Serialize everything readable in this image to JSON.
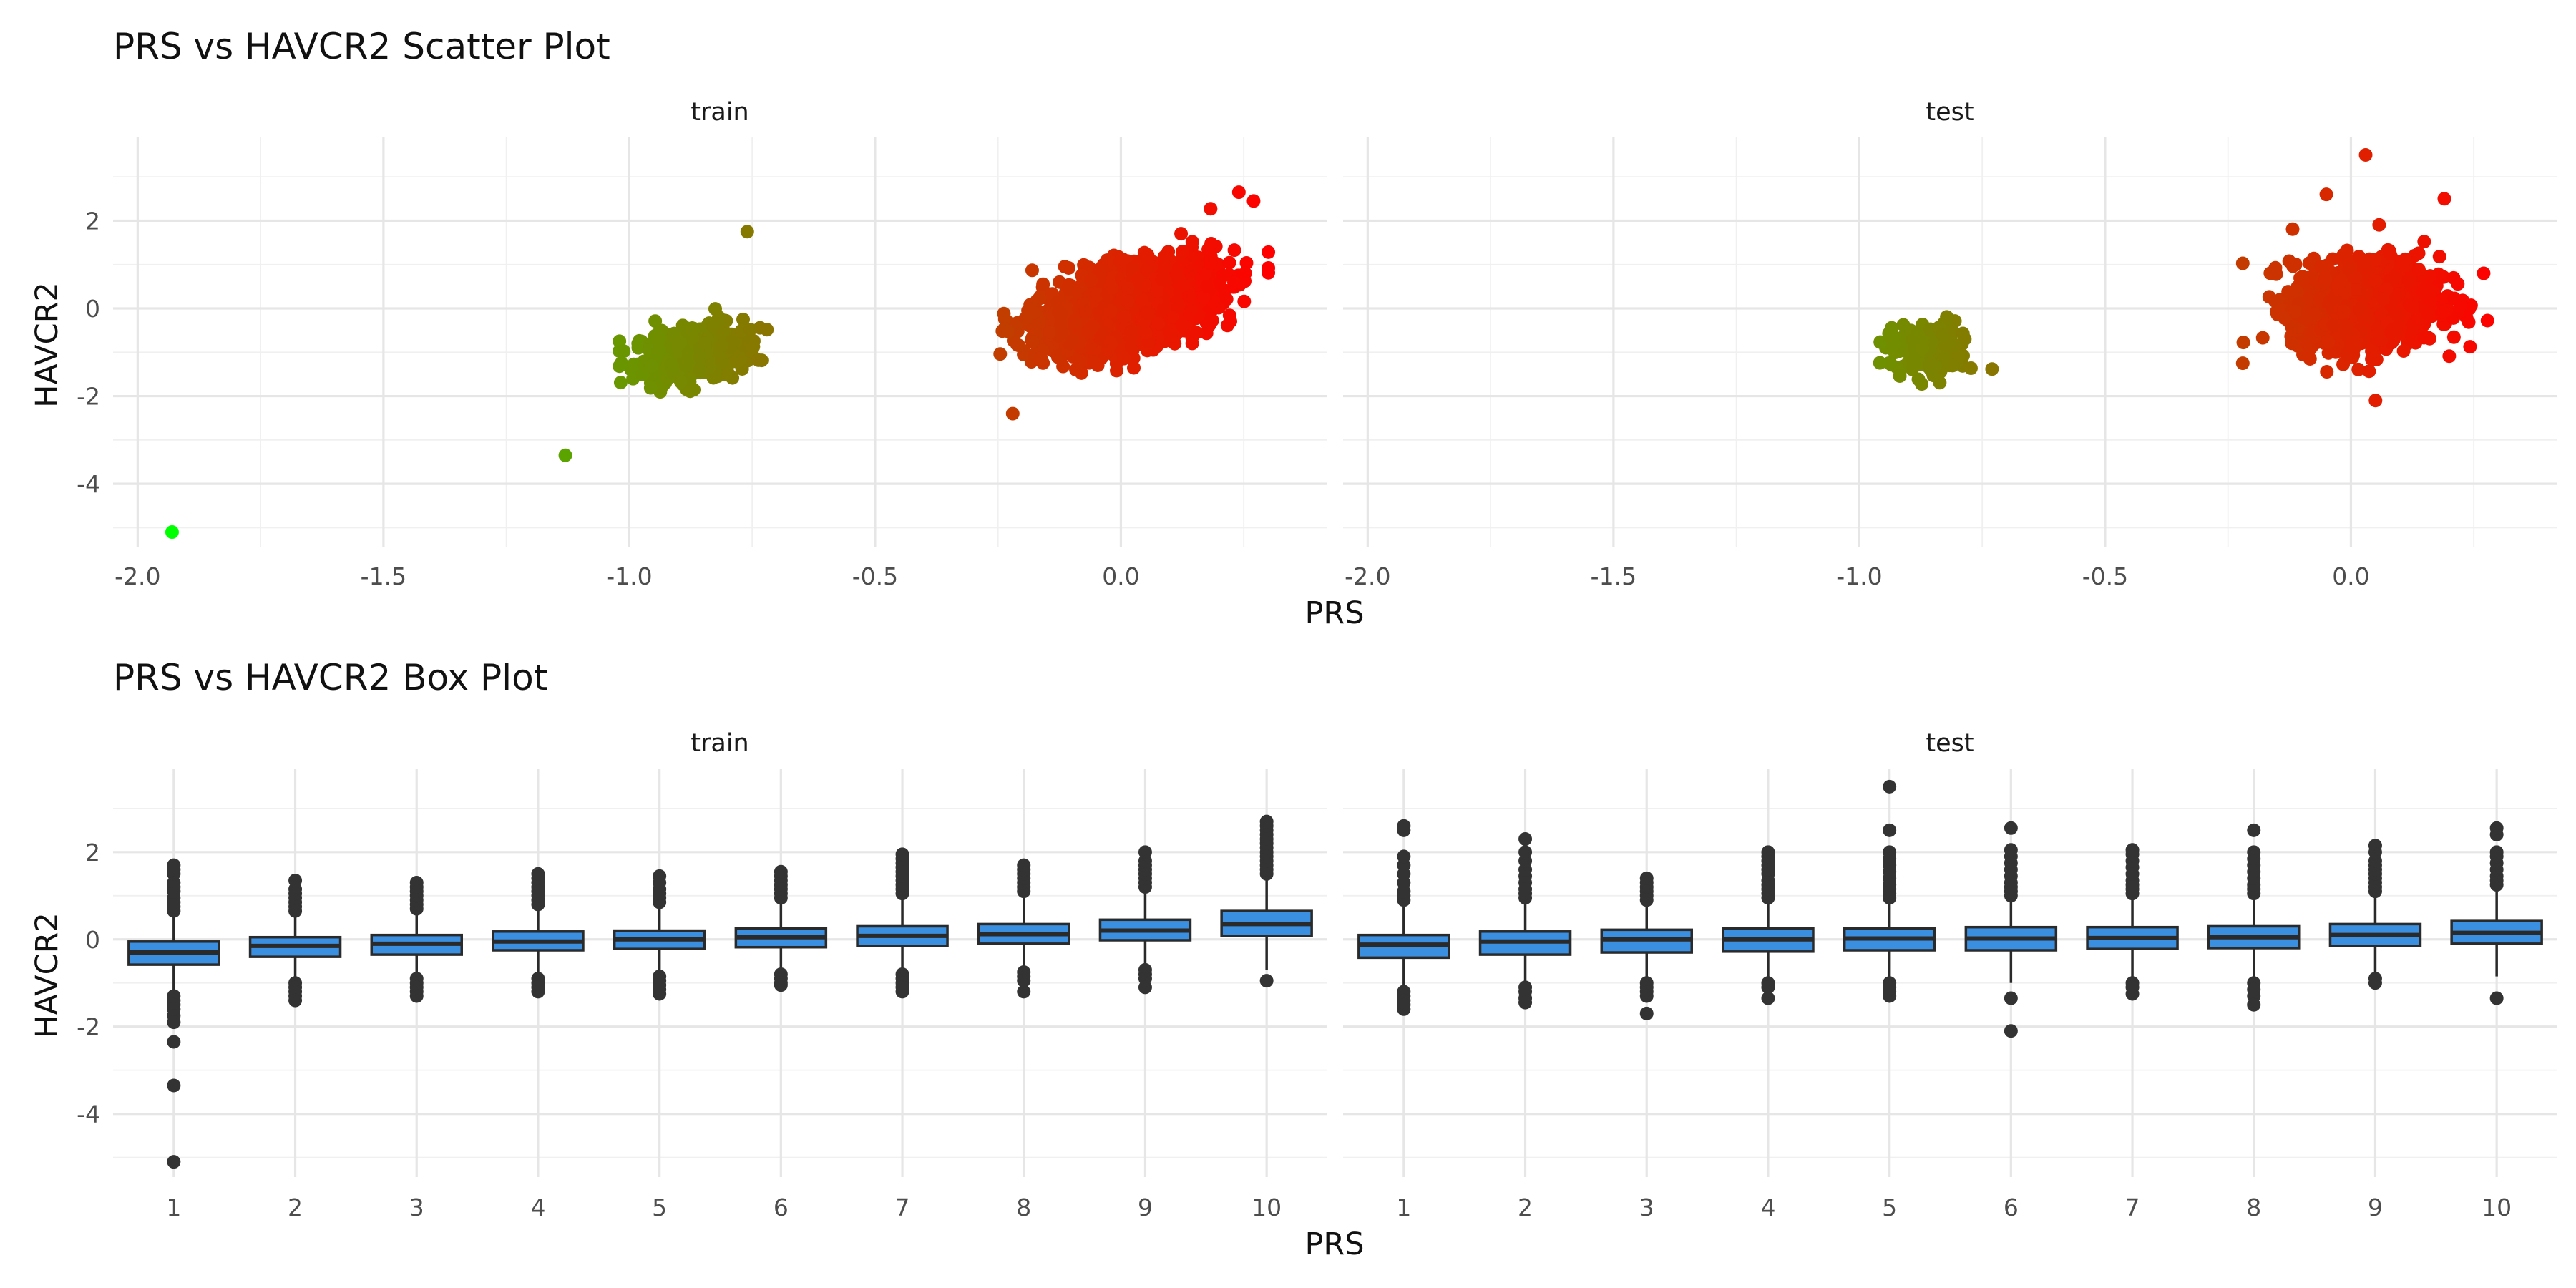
{
  "chart_data": [
    {
      "type": "scatter",
      "title": "PRS vs HAVCR2 Scatter Plot",
      "xlabel": "PRS",
      "ylabel": "HAVCR2",
      "facets": [
        "train",
        "test"
      ],
      "xlim": [
        -2.05,
        0.42
      ],
      "ylim": [
        -5.45,
        3.9
      ],
      "x_ticks": [
        -2.0,
        -1.5,
        -1.0,
        -0.5,
        0.0
      ],
      "x_tick_labels": [
        "-2.0",
        "-1.5",
        "-1.0",
        "-0.5",
        "0.0"
      ],
      "y_ticks": [
        -4,
        -2,
        0,
        2
      ],
      "y_tick_labels": [
        "-4",
        "-2",
        "0",
        "2"
      ],
      "grid": true,
      "legend": "none",
      "color_scale": {
        "low": "#00ff00",
        "high": "#ff0000",
        "by": "PRS"
      },
      "series": [
        {
          "facet": "train",
          "outliers": [
            [
              -1.93,
              -5.1
            ],
            [
              -1.13,
              -3.35
            ],
            [
              -0.76,
              1.75
            ],
            [
              -0.22,
              -2.4
            ],
            [
              0.27,
              2.45
            ],
            [
              0.24,
              2.65
            ]
          ],
          "clusters": [
            {
              "x_mean": -0.88,
              "x_sd": 0.055,
              "y_mean": -1.05,
              "y_sd": 0.32,
              "slope": 1.6,
              "x_range": [
                -1.02,
                -0.68
              ],
              "n": 420
            },
            {
              "x_mean": 0.02,
              "x_sd": 0.085,
              "y_mean": 0.05,
              "y_sd": 0.42,
              "slope": 2.6,
              "x_range": [
                -0.25,
                0.3
              ],
              "n": 2600
            }
          ]
        },
        {
          "facet": "test",
          "outliers": [
            [
              0.03,
              3.5
            ],
            [
              -0.22,
              -1.25
            ],
            [
              0.05,
              -2.1
            ],
            [
              0.27,
              0.8
            ],
            [
              0.19,
              2.5
            ],
            [
              -0.05,
              2.6
            ]
          ],
          "clusters": [
            {
              "x_mean": -0.86,
              "x_sd": 0.045,
              "y_mean": -0.95,
              "y_sd": 0.32,
              "slope": 0.0,
              "x_range": [
                -0.99,
                -0.73
              ],
              "n": 120
            },
            {
              "x_mean": 0.03,
              "x_sd": 0.075,
              "y_mean": 0.1,
              "y_sd": 0.5,
              "slope": 0.5,
              "x_range": [
                -0.22,
                0.28
              ],
              "n": 1100
            }
          ]
        }
      ]
    },
    {
      "type": "box",
      "title": "PRS vs HAVCR2 Box Plot",
      "xlabel": "PRS",
      "ylabel": "HAVCR2",
      "facets": [
        "train",
        "test"
      ],
      "categories": [
        "1",
        "2",
        "3",
        "4",
        "5",
        "6",
        "7",
        "8",
        "9",
        "10"
      ],
      "ylim": [
        -5.45,
        3.9
      ],
      "y_ticks": [
        -4,
        -2,
        0,
        2
      ],
      "y_tick_labels": [
        "-4",
        "-2",
        "0",
        "2"
      ],
      "grid": true,
      "box_fill": "#3a8fe0",
      "box_stroke": "#2a2a2a",
      "point_color": "#333333",
      "series": [
        {
          "facet": "train",
          "boxes": [
            {
              "q1": -0.58,
              "median": -0.3,
              "q3": -0.05,
              "whislo": -1.2,
              "whishi": 0.55,
              "outliers": [
                0.65,
                0.75,
                0.85,
                0.95,
                1.1,
                1.2,
                1.3,
                1.5,
                1.6,
                1.7,
                -1.3,
                -1.4,
                -1.5,
                -1.6,
                -1.75,
                -1.9,
                -2.35,
                -3.35,
                -5.1
              ]
            },
            {
              "q1": -0.4,
              "median": -0.15,
              "q3": 0.05,
              "whislo": -0.9,
              "whishi": 0.55,
              "outliers": [
                0.65,
                0.75,
                0.85,
                0.95,
                1.05,
                1.15,
                1.35,
                -1.0,
                -1.1,
                -1.2,
                -1.3,
                -1.4
              ]
            },
            {
              "q1": -0.35,
              "median": -0.1,
              "q3": 0.1,
              "whislo": -0.85,
              "whishi": 0.6,
              "outliers": [
                0.7,
                0.8,
                0.9,
                1.0,
                1.1,
                1.2,
                1.3,
                -0.9,
                -1.0,
                -1.1,
                -1.2,
                -1.3
              ]
            },
            {
              "q1": -0.25,
              "median": -0.05,
              "q3": 0.18,
              "whislo": -0.85,
              "whishi": 0.7,
              "outliers": [
                0.8,
                0.9,
                1.0,
                1.1,
                1.2,
                1.3,
                1.4,
                1.5,
                -0.9,
                -1.0,
                -1.1,
                -1.2
              ]
            },
            {
              "q1": -0.22,
              "median": 0.0,
              "q3": 0.2,
              "whislo": -0.8,
              "whishi": 0.75,
              "outliers": [
                0.85,
                0.95,
                1.05,
                1.15,
                1.3,
                1.45,
                -0.85,
                -0.95,
                -1.05,
                -1.15,
                -1.25
              ]
            },
            {
              "q1": -0.18,
              "median": 0.05,
              "q3": 0.25,
              "whislo": -0.75,
              "whishi": 0.85,
              "outliers": [
                0.95,
                1.05,
                1.15,
                1.25,
                1.35,
                1.45,
                1.55,
                -0.8,
                -0.9,
                -1.0,
                -1.05
              ]
            },
            {
              "q1": -0.15,
              "median": 0.08,
              "q3": 0.3,
              "whislo": -0.75,
              "whishi": 0.95,
              "outliers": [
                1.05,
                1.15,
                1.25,
                1.35,
                1.45,
                1.55,
                1.65,
                1.75,
                1.85,
                1.95,
                -0.8,
                -0.9,
                -1.0,
                -1.1,
                -1.2
              ]
            },
            {
              "q1": -0.1,
              "median": 0.12,
              "q3": 0.35,
              "whislo": -0.7,
              "whishi": 1.0,
              "outliers": [
                1.1,
                1.2,
                1.3,
                1.4,
                1.5,
                1.6,
                1.7,
                -0.75,
                -0.85,
                -0.95,
                -1.2
              ]
            },
            {
              "q1": -0.02,
              "median": 0.2,
              "q3": 0.45,
              "whislo": -0.6,
              "whishi": 1.1,
              "outliers": [
                1.2,
                1.3,
                1.4,
                1.5,
                1.6,
                1.7,
                1.8,
                2.0,
                -0.7,
                -0.8,
                -0.9,
                -1.1
              ]
            },
            {
              "q1": 0.08,
              "median": 0.35,
              "q3": 0.65,
              "whislo": -0.7,
              "whishi": 1.45,
              "outliers": [
                1.5,
                1.6,
                1.7,
                1.8,
                1.9,
                2.0,
                2.1,
                2.2,
                2.3,
                2.4,
                2.5,
                2.6,
                2.7,
                -0.95
              ]
            }
          ]
        },
        {
          "facet": "test",
          "boxes": [
            {
              "q1": -0.42,
              "median": -0.12,
              "q3": 0.1,
              "whislo": -1.1,
              "whishi": 0.8,
              "outliers": [
                0.9,
                1.0,
                1.1,
                1.3,
                1.5,
                1.7,
                1.9,
                2.5,
                2.6,
                -1.2,
                -1.3,
                -1.4,
                -1.5,
                -1.6
              ]
            },
            {
              "q1": -0.35,
              "median": -0.05,
              "q3": 0.18,
              "whislo": -1.0,
              "whishi": 0.85,
              "outliers": [
                0.95,
                1.05,
                1.15,
                1.3,
                1.45,
                1.6,
                1.8,
                2.0,
                2.3,
                -1.1,
                -1.2,
                -1.35,
                -1.45
              ]
            },
            {
              "q1": -0.3,
              "median": 0.0,
              "q3": 0.22,
              "whislo": -0.95,
              "whishi": 0.8,
              "outliers": [
                0.9,
                1.0,
                1.1,
                1.2,
                1.3,
                1.4,
                -1.0,
                -1.1,
                -1.2,
                -1.3,
                -1.7
              ]
            },
            {
              "q1": -0.28,
              "median": 0.0,
              "q3": 0.25,
              "whislo": -0.95,
              "whishi": 0.85,
              "outliers": [
                0.95,
                1.05,
                1.15,
                1.25,
                1.35,
                1.5,
                1.6,
                1.7,
                1.8,
                1.9,
                2.0,
                -1.0,
                -1.1,
                -1.35
              ]
            },
            {
              "q1": -0.25,
              "median": 0.02,
              "q3": 0.25,
              "whislo": -0.95,
              "whishi": 0.85,
              "outliers": [
                0.95,
                1.05,
                1.15,
                1.25,
                1.4,
                1.55,
                1.7,
                1.85,
                2.0,
                2.5,
                3.5,
                -1.0,
                -1.1,
                -1.2,
                -1.3
              ]
            },
            {
              "q1": -0.25,
              "median": 0.02,
              "q3": 0.28,
              "whislo": -1.0,
              "whishi": 0.9,
              "outliers": [
                1.0,
                1.1,
                1.2,
                1.3,
                1.45,
                1.6,
                1.75,
                1.9,
                2.05,
                2.55,
                -1.35,
                -2.1
              ]
            },
            {
              "q1": -0.22,
              "median": 0.03,
              "q3": 0.28,
              "whislo": -0.95,
              "whishi": 0.95,
              "outliers": [
                1.05,
                1.15,
                1.25,
                1.35,
                1.5,
                1.65,
                1.8,
                1.95,
                2.05,
                -1.0,
                -1.1,
                -1.25
              ]
            },
            {
              "q1": -0.2,
              "median": 0.05,
              "q3": 0.3,
              "whislo": -0.95,
              "whishi": 0.95,
              "outliers": [
                1.05,
                1.15,
                1.25,
                1.4,
                1.55,
                1.7,
                1.85,
                2.0,
                2.5,
                -1.0,
                -1.15,
                -1.3,
                -1.5
              ]
            },
            {
              "q1": -0.15,
              "median": 0.1,
              "q3": 0.35,
              "whislo": -0.85,
              "whishi": 1.0,
              "outliers": [
                1.1,
                1.2,
                1.3,
                1.4,
                1.5,
                1.6,
                1.7,
                1.8,
                2.0,
                2.15,
                -0.9,
                -1.0
              ]
            },
            {
              "q1": -0.1,
              "median": 0.15,
              "q3": 0.42,
              "whislo": -0.85,
              "whishi": 1.15,
              "outliers": [
                1.25,
                1.35,
                1.45,
                1.6,
                1.75,
                1.9,
                2.0,
                2.4,
                2.55,
                -1.35
              ]
            }
          ]
        }
      ]
    }
  ]
}
